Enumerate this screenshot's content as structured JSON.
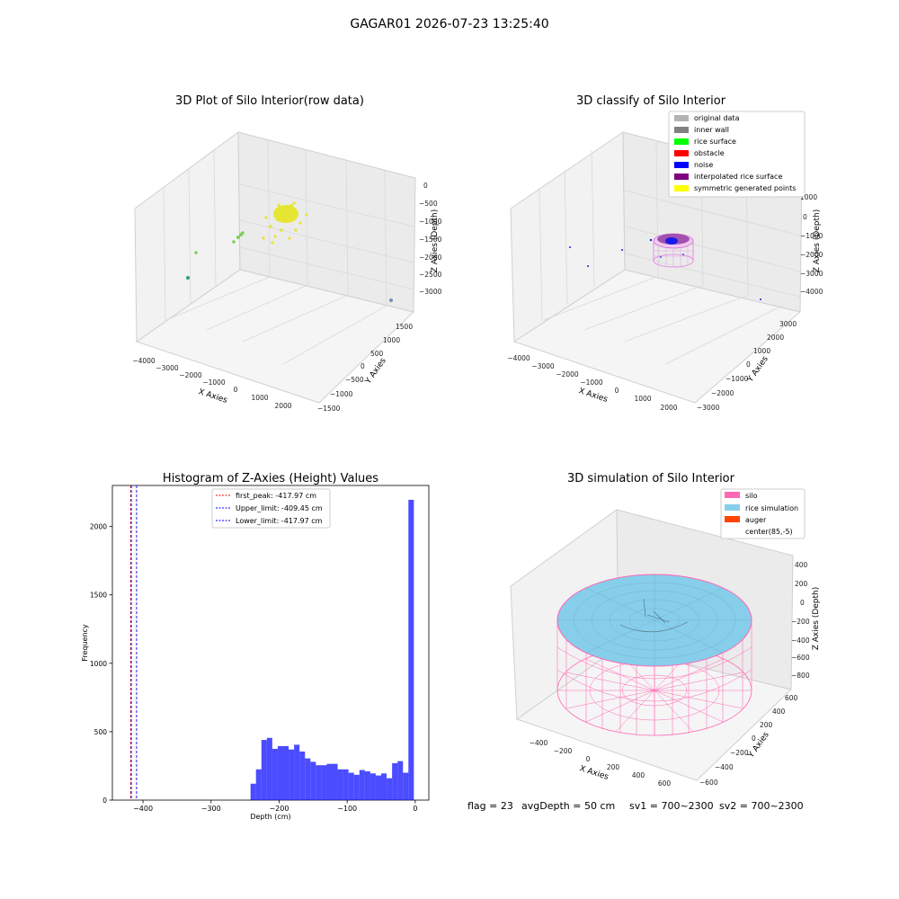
{
  "suptitle": "GAGAR01 2026-07-23 13:25:40",
  "footer": {
    "flag": "flag = 23",
    "avg": "avgDepth = 50 cm",
    "sv1": "sv1 = 700~2300",
    "sv2": "sv2 = 700~2300"
  },
  "chart_data": [
    {
      "type": "scatter3d",
      "title": "3D Plot of Silo Interior(row data)",
      "xlabel": "X Axies",
      "ylabel": "Y Axies",
      "zlabel": "Z Axies (Depth)",
      "xticks": [
        "−4000",
        "−3000",
        "−2000",
        "−1000",
        "0",
        "1000",
        "2000"
      ],
      "yticks": [
        "−1500",
        "−1000",
        "−500",
        "0",
        "500",
        "1000",
        "1500"
      ],
      "zticks": [
        "0",
        "−500",
        "−1000",
        "−1500",
        "−2000",
        "−2500",
        "−3000"
      ],
      "grid": true
    },
    {
      "type": "scatter3d",
      "title": "3D classify of Silo Interior",
      "xlabel": "X Axies",
      "ylabel": "Y Axies",
      "zlabel": "Z Axies (Depth)",
      "xticks": [
        "−4000",
        "−3000",
        "−2000",
        "−1000",
        "0",
        "1000",
        "2000"
      ],
      "yticks": [
        "−3000",
        "−2000",
        "−1000",
        "0",
        "1000",
        "2000",
        "3000"
      ],
      "zticks": [
        "1000",
        "0",
        "−1000",
        "−2000",
        "−3000",
        "−4000"
      ],
      "legend_position": "top-right",
      "legend": [
        {
          "label": "original data",
          "color": "#b3b3b3"
        },
        {
          "label": "inner wall",
          "color": "#808080"
        },
        {
          "label": "rice surface",
          "color": "#00ff00"
        },
        {
          "label": "obstacle",
          "color": "#ff0000"
        },
        {
          "label": "noise",
          "color": "#0000ff"
        },
        {
          "label": "interpolated rice surface",
          "color": "#800080"
        },
        {
          "label": "symmetric generated points",
          "color": "#ffff00"
        }
      ],
      "grid": true
    },
    {
      "type": "bar",
      "title": "Histogram of Z-Axies (Height) Values",
      "xlabel": "Depth (cm)",
      "ylabel": "Frequency",
      "xlim": [
        -445,
        20
      ],
      "ylim": [
        0,
        2300
      ],
      "xticks": [
        -400,
        -300,
        -200,
        -100,
        0
      ],
      "xtick_labels": [
        "−400",
        "−300",
        "−200",
        "−100",
        "0"
      ],
      "yticks": [
        0,
        500,
        1000,
        1500,
        2000
      ],
      "bin_width": 8,
      "bins": [
        {
          "x": -238,
          "value": 120
        },
        {
          "x": -230,
          "value": 225
        },
        {
          "x": -222,
          "value": 440
        },
        {
          "x": -214,
          "value": 455
        },
        {
          "x": -206,
          "value": 375
        },
        {
          "x": -198,
          "value": 395
        },
        {
          "x": -190,
          "value": 395
        },
        {
          "x": -182,
          "value": 370
        },
        {
          "x": -174,
          "value": 405
        },
        {
          "x": -166,
          "value": 355
        },
        {
          "x": -158,
          "value": 305
        },
        {
          "x": -150,
          "value": 280
        },
        {
          "x": -142,
          "value": 255
        },
        {
          "x": -134,
          "value": 255
        },
        {
          "x": -126,
          "value": 265
        },
        {
          "x": -118,
          "value": 265
        },
        {
          "x": -110,
          "value": 225
        },
        {
          "x": -102,
          "value": 225
        },
        {
          "x": -94,
          "value": 200
        },
        {
          "x": -86,
          "value": 185
        },
        {
          "x": -78,
          "value": 220
        },
        {
          "x": -70,
          "value": 210
        },
        {
          "x": -62,
          "value": 195
        },
        {
          "x": -54,
          "value": 180
        },
        {
          "x": -46,
          "value": 195
        },
        {
          "x": -38,
          "value": 160
        },
        {
          "x": -30,
          "value": 270
        },
        {
          "x": -22,
          "value": 285
        },
        {
          "x": -14,
          "value": 200
        },
        {
          "x": -6,
          "value": 2195
        }
      ],
      "bar_color": "#0000ff",
      "vlines": [
        {
          "label": "first_peak: -417.97 cm",
          "x": -417.97,
          "color": "#ff0000"
        },
        {
          "label": "Upper_limit: -409.45 cm",
          "x": -409.45,
          "color": "#0000ff"
        },
        {
          "label": "Lower_limit: -417.97 cm",
          "x": -417.97,
          "color": "#0000ff"
        }
      ],
      "legend_position": "top-center"
    },
    {
      "type": "surface3d",
      "title": "3D simulation of Silo Interior",
      "xlabel": "X Axies",
      "ylabel": "Y Axies",
      "zlabel": "Z Axies (Depth)",
      "xticks": [
        "−400",
        "−200",
        "0",
        "200",
        "400",
        "600"
      ],
      "yticks": [
        "−600",
        "−400",
        "−200",
        "0",
        "200",
        "400",
        "600"
      ],
      "zticks": [
        "400",
        "200",
        "0",
        "−200",
        "−400",
        "−600",
        "−800"
      ],
      "legend_position": "top-right",
      "legend": [
        {
          "label": "silo",
          "color": "#ff69b4"
        },
        {
          "label": "rice simulation",
          "color": "#87ceeb"
        },
        {
          "label": "auger",
          "color": "#ff4500"
        },
        {
          "label": "center(85,-5)",
          "color": "#ffffff"
        }
      ],
      "grid": true
    }
  ]
}
